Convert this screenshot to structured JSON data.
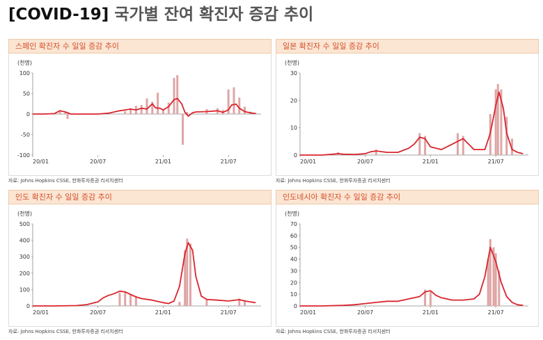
{
  "title": {
    "tag": "[COVID-19]",
    "text": "국가별 잔여 확진자 증감 추이"
  },
  "source": "자료: Johns Hopkins CSSE, 한화투자증권 리서치센터",
  "colors": {
    "line": "#d9242c",
    "bar": "#dfa5a5",
    "header_bg": "#fbe5d3",
    "header_text": "#d4502a"
  },
  "chart_data": [
    {
      "type": "bar",
      "title": "스페인 확진자 수 일일 증감 추이",
      "unit": "(천명)",
      "x_ticks": [
        "20/01",
        "20/07",
        "21/01",
        "21/07"
      ],
      "x_range": [
        0,
        21
      ],
      "ylim": [
        -100,
        100
      ],
      "y_ticks": [
        100,
        50,
        0,
        -50,
        -100
      ],
      "series": [
        {
          "type": "bar",
          "values_note": "daily",
          "x": [
            2.5,
            3.0,
            3.2,
            8.5,
            9.0,
            9.5,
            10.0,
            10.5,
            11.0,
            11.5,
            12.0,
            12.5,
            13.0,
            13.3,
            13.8,
            14.2,
            16.0,
            17.0,
            17.5,
            18.0,
            18.5,
            19.0,
            19.5,
            20.0,
            20.5
          ],
          "y": [
            9,
            4,
            -12,
            7,
            14,
            20,
            22,
            38,
            30,
            52,
            12,
            28,
            88,
            95,
            -75,
            5,
            12,
            14,
            10,
            60,
            65,
            40,
            18,
            6,
            3
          ]
        },
        {
          "type": "line",
          "x": [
            0,
            1,
            2,
            2.5,
            3,
            3.5,
            4,
            5,
            6,
            7,
            7.5,
            8,
            8.5,
            9,
            9.5,
            10,
            10.5,
            11,
            11.3,
            11.7,
            12,
            12.5,
            13,
            13.3,
            13.7,
            14,
            14.3,
            14.7,
            15,
            16,
            17,
            17.5,
            18,
            18.3,
            18.7,
            19,
            19.5,
            20,
            20.5
          ],
          "y": [
            0,
            0,
            1,
            8,
            5,
            0,
            0,
            0,
            0,
            2,
            5,
            8,
            10,
            12,
            10,
            14,
            12,
            25,
            15,
            14,
            10,
            18,
            35,
            38,
            25,
            4,
            -5,
            3,
            5,
            6,
            8,
            4,
            10,
            22,
            24,
            14,
            6,
            3,
            1
          ]
        }
      ]
    },
    {
      "type": "bar",
      "title": "일본 확진자 수 일일 증감 추이",
      "unit": "(천명)",
      "x_ticks": [
        "20/01",
        "20/07",
        "21/01",
        "21/07"
      ],
      "x_range": [
        0,
        21
      ],
      "ylim": [
        0,
        30
      ],
      "y_ticks": [
        30,
        20,
        10,
        0
      ],
      "series": [
        {
          "type": "bar",
          "values_note": "daily",
          "x": [
            3.5,
            7.0,
            11.0,
            11.5,
            14.5,
            15.0,
            17.5,
            18.0,
            18.2,
            18.5,
            19.0,
            19.5
          ],
          "y": [
            1,
            2,
            8,
            7,
            8,
            7,
            15,
            24,
            26,
            24,
            14,
            6
          ]
        },
        {
          "type": "line",
          "x": [
            0,
            1,
            2,
            3,
            3.5,
            4,
            5,
            6,
            6.5,
            7,
            8,
            9,
            10,
            10.5,
            11,
            11.5,
            12,
            13,
            14,
            14.5,
            15,
            15.5,
            16,
            17,
            17.5,
            18,
            18.3,
            18.7,
            19,
            19.5,
            20,
            20.5
          ],
          "y": [
            0,
            0,
            0,
            0.3,
            0.5,
            0.3,
            0.2,
            0.5,
            1.2,
            1.5,
            1,
            1,
            2.5,
            4,
            6.5,
            6,
            3,
            2,
            4,
            5,
            6,
            4,
            2,
            2,
            8,
            18,
            23,
            17,
            8,
            2,
            1,
            0.5
          ]
        }
      ]
    },
    {
      "type": "bar",
      "title": "인도 확진자 수 일일 증감 추이",
      "unit": "(천명)",
      "x_ticks": [
        "20/01",
        "20/07",
        "21/01",
        "21/07"
      ],
      "x_range": [
        0,
        21
      ],
      "ylim": [
        0,
        500
      ],
      "y_ticks": [
        500,
        400,
        300,
        200,
        100,
        0
      ],
      "series": [
        {
          "type": "bar",
          "values_note": "daily",
          "x": [
            8.0,
            8.5,
            9.0,
            9.5,
            13.5,
            14.0,
            14.2,
            14.5,
            16.0,
            19.0,
            19.5
          ],
          "y": [
            80,
            90,
            70,
            60,
            25,
            340,
            410,
            380,
            40,
            45,
            35
          ]
        },
        {
          "type": "line",
          "x": [
            0,
            2,
            4,
            5,
            6,
            6.5,
            7,
            7.5,
            8,
            8.5,
            9,
            9.5,
            10,
            11,
            12,
            12.5,
            13,
            13.5,
            14,
            14.3,
            14.7,
            15,
            15.5,
            16,
            17,
            18,
            19,
            19.5,
            20,
            20.5
          ],
          "y": [
            0,
            0,
            2,
            8,
            25,
            50,
            65,
            75,
            90,
            85,
            70,
            55,
            45,
            35,
            20,
            15,
            30,
            120,
            320,
            385,
            340,
            180,
            60,
            40,
            35,
            30,
            38,
            30,
            25,
            20
          ]
        }
      ]
    },
    {
      "type": "bar",
      "title": "인도네시아 확진자 수 일일 증감 추이",
      "unit": "(천명)",
      "x_ticks": [
        "20/01",
        "20/07",
        "21/01",
        "21/07"
      ],
      "x_range": [
        0,
        21
      ],
      "ylim": [
        0,
        70
      ],
      "y_ticks": [
        70,
        60,
        50,
        40,
        30,
        20,
        10,
        0
      ],
      "series": [
        {
          "type": "bar",
          "values_note": "daily",
          "x": [
            11.5,
            12.0,
            17.3,
            17.5,
            17.8,
            18.0,
            18.3
          ],
          "y": [
            14,
            12,
            40,
            57,
            50,
            45,
            30
          ]
        },
        {
          "type": "line",
          "x": [
            0,
            2,
            4,
            5,
            6,
            7,
            8,
            9,
            10,
            11,
            11.5,
            12,
            12.5,
            13,
            14,
            15,
            16,
            16.5,
            17,
            17.5,
            18,
            18.5,
            19,
            19.5,
            20,
            20.5
          ],
          "y": [
            0,
            0,
            0.5,
            1,
            2,
            3,
            4,
            4,
            6,
            8,
            12,
            13,
            9,
            7,
            5,
            5,
            6,
            10,
            25,
            50,
            38,
            20,
            8,
            3,
            1,
            0.5
          ]
        }
      ]
    }
  ]
}
